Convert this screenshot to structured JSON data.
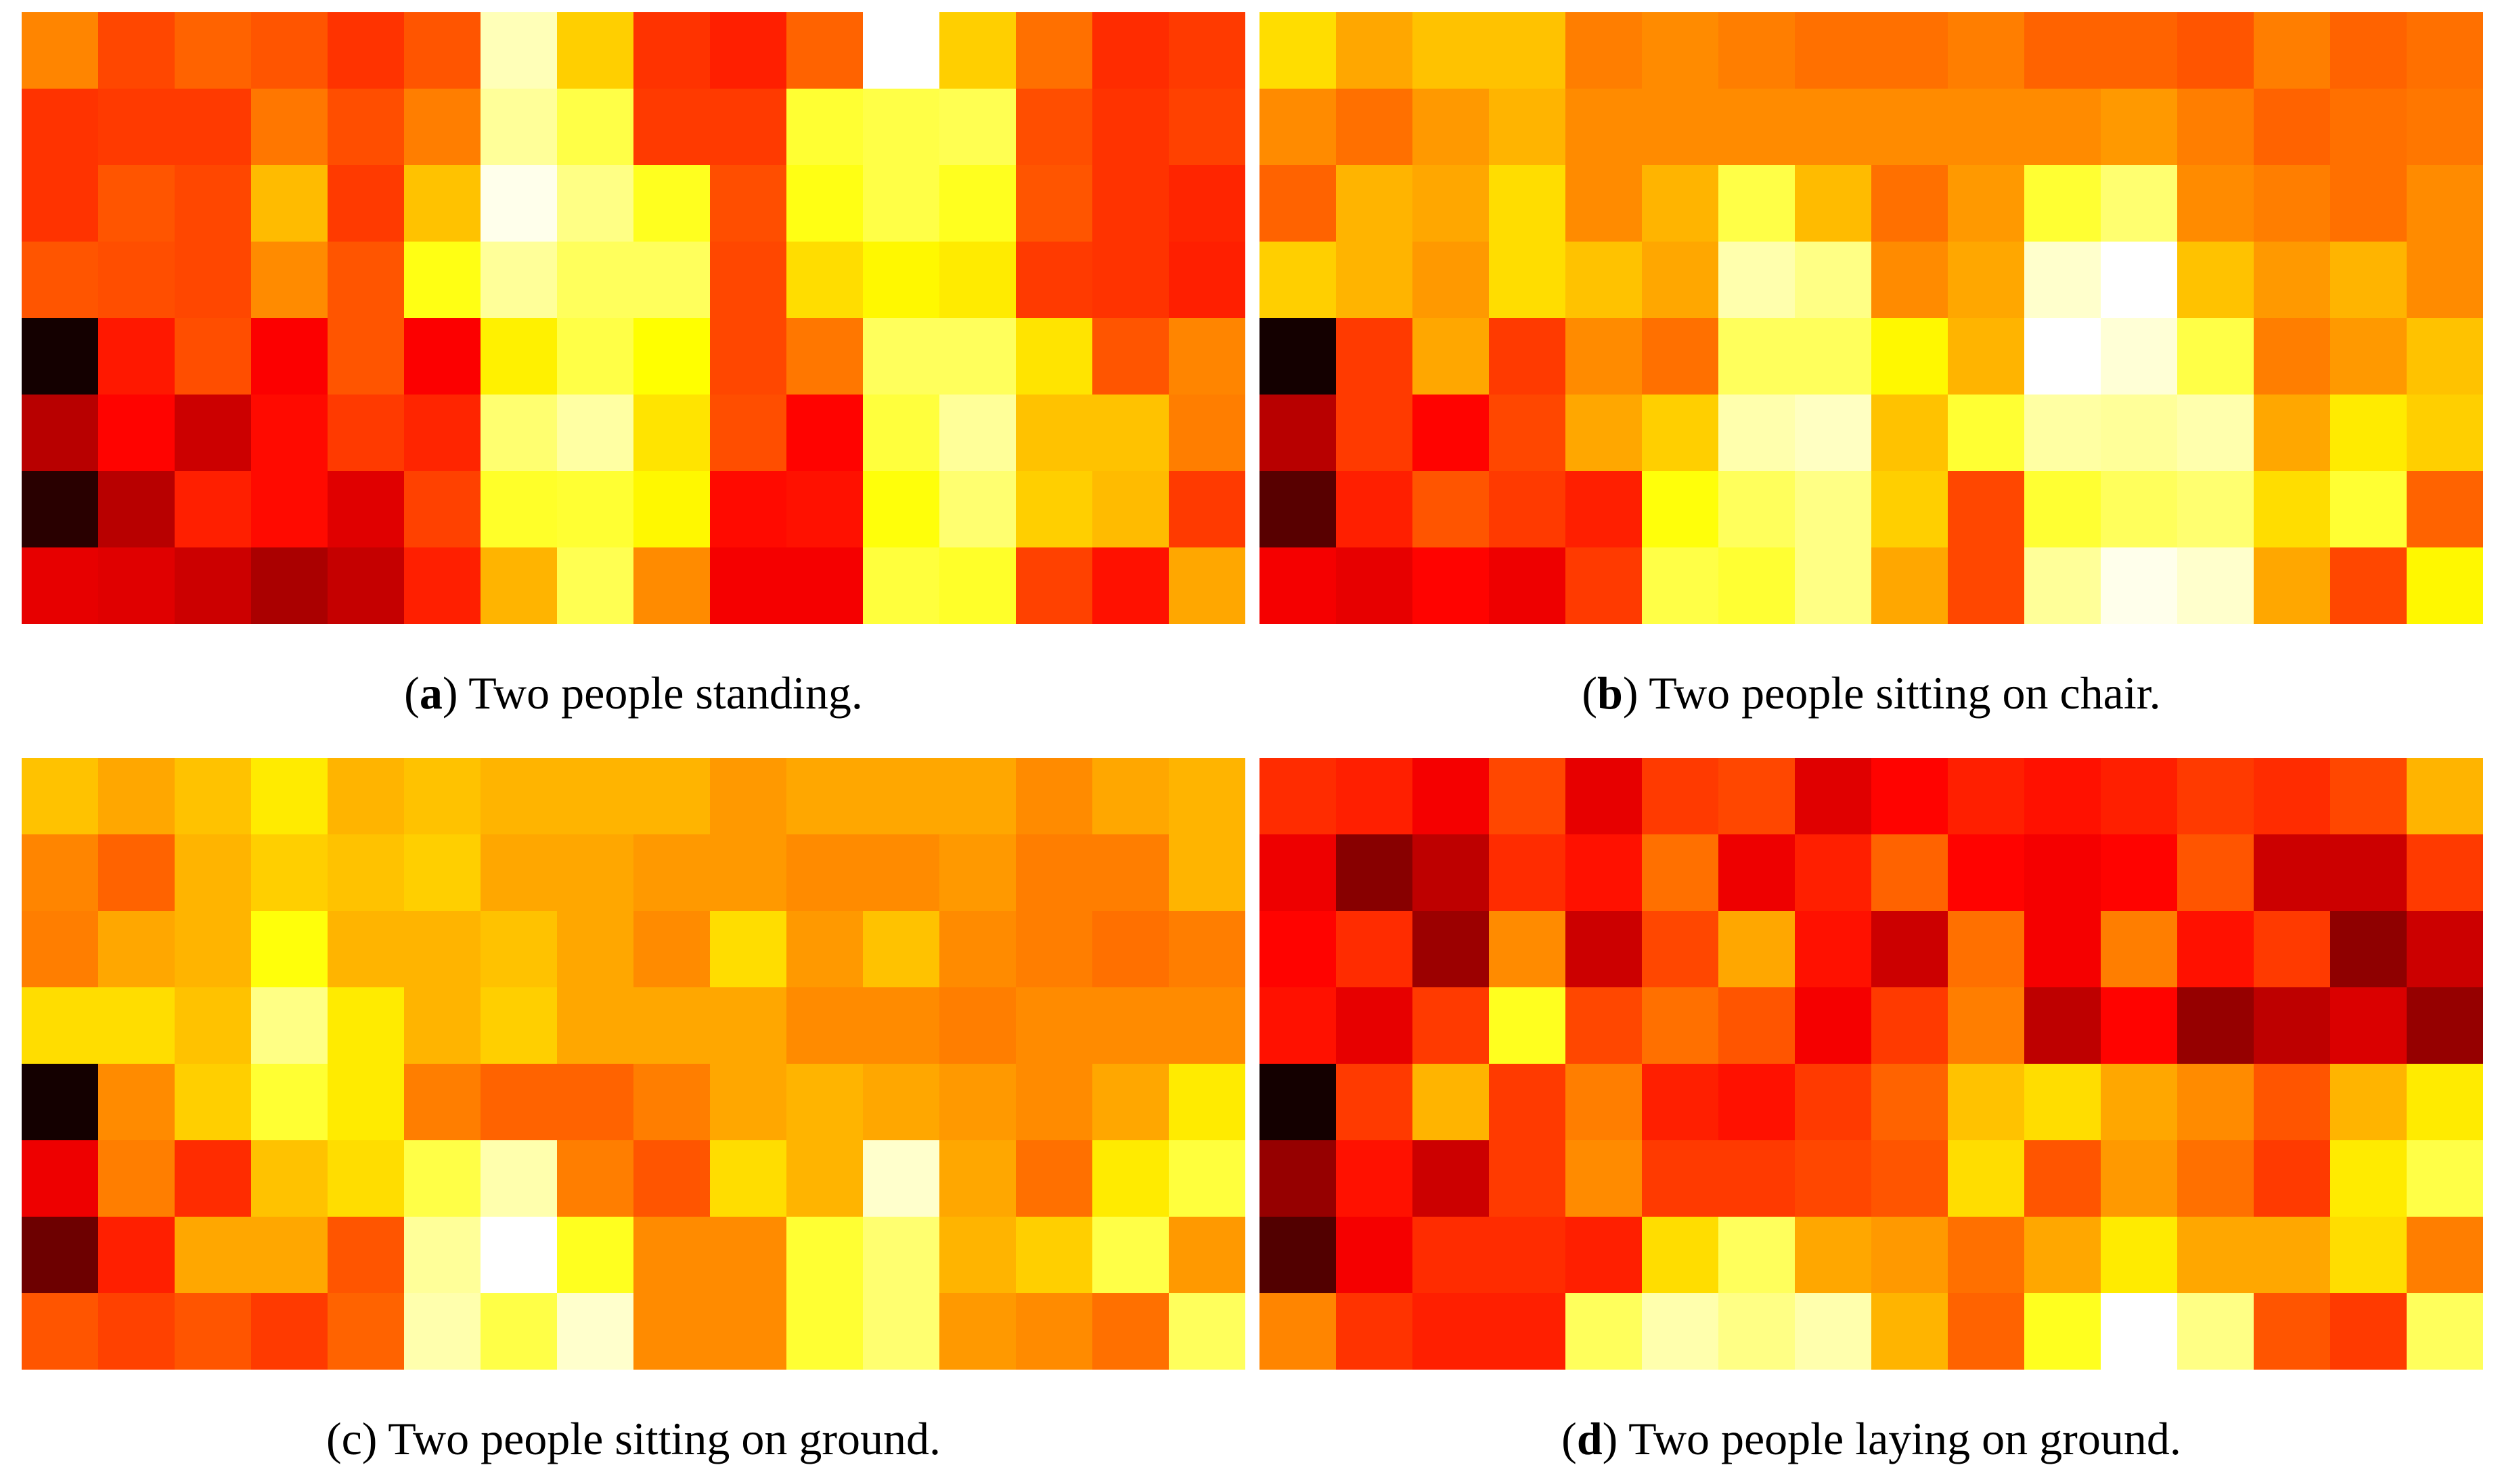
{
  "figure": {
    "panels": [
      {
        "letter": "a",
        "label": "Two people standing.",
        "letter_bold": true
      },
      {
        "letter": "b",
        "label": "Two people sitting on chair.",
        "letter_bold": true
      },
      {
        "letter": "c",
        "label": "Two people sitting on ground.",
        "letter_bold": false
      },
      {
        "letter": "d",
        "label": "Two people laying on ground.",
        "letter_bold": true
      }
    ]
  },
  "chart_data": [
    {
      "type": "heatmap",
      "title": "(a) Two people standing.",
      "colormap": "hot",
      "vmin": 0,
      "vmax": 1,
      "rows": 8,
      "cols": 16,
      "values": [
        [
          0.57,
          0.48,
          0.52,
          0.5,
          0.45,
          0.5,
          0.93,
          0.68,
          0.45,
          0.42,
          0.52,
          1.0,
          0.68,
          0.54,
          0.44,
          0.46
        ],
        [
          0.45,
          0.46,
          0.46,
          0.55,
          0.49,
          0.56,
          0.9,
          0.82,
          0.46,
          0.46,
          0.8,
          0.82,
          0.83,
          0.49,
          0.45,
          0.47
        ],
        [
          0.45,
          0.5,
          0.48,
          0.65,
          0.46,
          0.66,
          0.98,
          0.88,
          0.78,
          0.49,
          0.77,
          0.82,
          0.78,
          0.5,
          0.45,
          0.43
        ],
        [
          0.5,
          0.49,
          0.48,
          0.58,
          0.5,
          0.77,
          0.9,
          0.84,
          0.84,
          0.48,
          0.7,
          0.74,
          0.72,
          0.46,
          0.45,
          0.42
        ],
        [
          0.03,
          0.41,
          0.49,
          0.37,
          0.5,
          0.37,
          0.73,
          0.82,
          0.75,
          0.48,
          0.55,
          0.84,
          0.84,
          0.71,
          0.5,
          0.57
        ],
        [
          0.27,
          0.38,
          0.3,
          0.39,
          0.46,
          0.43,
          0.86,
          0.91,
          0.71,
          0.49,
          0.38,
          0.81,
          0.9,
          0.66,
          0.66,
          0.56
        ],
        [
          0.06,
          0.27,
          0.42,
          0.39,
          0.33,
          0.47,
          0.79,
          0.8,
          0.74,
          0.39,
          0.4,
          0.76,
          0.86,
          0.68,
          0.65,
          0.46
        ],
        [
          0.34,
          0.33,
          0.3,
          0.25,
          0.29,
          0.42,
          0.64,
          0.83,
          0.58,
          0.36,
          0.36,
          0.81,
          0.79,
          0.47,
          0.4,
          0.62
        ]
      ]
    },
    {
      "type": "heatmap",
      "title": "(b) Two people sitting on chair.",
      "colormap": "hot",
      "vmin": 0,
      "vmax": 1,
      "rows": 8,
      "cols": 16,
      "values": [
        [
          0.7,
          0.62,
          0.66,
          0.66,
          0.56,
          0.58,
          0.56,
          0.54,
          0.54,
          0.56,
          0.52,
          0.52,
          0.5,
          0.56,
          0.52,
          0.54
        ],
        [
          0.58,
          0.54,
          0.6,
          0.64,
          0.58,
          0.58,
          0.58,
          0.58,
          0.58,
          0.58,
          0.58,
          0.6,
          0.56,
          0.52,
          0.54,
          0.55
        ],
        [
          0.52,
          0.64,
          0.62,
          0.7,
          0.58,
          0.64,
          0.82,
          0.65,
          0.54,
          0.6,
          0.8,
          0.86,
          0.58,
          0.56,
          0.54,
          0.58
        ],
        [
          0.68,
          0.64,
          0.6,
          0.7,
          0.66,
          0.62,
          0.92,
          0.88,
          0.58,
          0.62,
          0.95,
          1.0,
          0.66,
          0.6,
          0.64,
          0.58
        ],
        [
          0.03,
          0.46,
          0.62,
          0.46,
          0.58,
          0.54,
          0.84,
          0.84,
          0.74,
          0.64,
          1.0,
          0.96,
          0.82,
          0.56,
          0.6,
          0.66
        ],
        [
          0.27,
          0.46,
          0.38,
          0.48,
          0.62,
          0.68,
          0.92,
          0.94,
          0.66,
          0.8,
          0.91,
          0.9,
          0.92,
          0.62,
          0.72,
          0.68
        ],
        [
          0.13,
          0.42,
          0.5,
          0.46,
          0.42,
          0.76,
          0.84,
          0.88,
          0.68,
          0.48,
          0.8,
          0.84,
          0.86,
          0.7,
          0.8,
          0.52
        ],
        [
          0.36,
          0.34,
          0.38,
          0.35,
          0.46,
          0.82,
          0.8,
          0.88,
          0.62,
          0.48,
          0.9,
          0.98,
          0.95,
          0.62,
          0.48,
          0.74
        ]
      ]
    },
    {
      "type": "heatmap",
      "title": "(c) Two people sitting on ground.",
      "colormap": "hot",
      "vmin": 0,
      "vmax": 1,
      "rows": 8,
      "cols": 16,
      "values": [
        [
          0.66,
          0.62,
          0.66,
          0.72,
          0.64,
          0.66,
          0.64,
          0.64,
          0.64,
          0.6,
          0.62,
          0.62,
          0.62,
          0.58,
          0.62,
          0.64
        ],
        [
          0.57,
          0.52,
          0.64,
          0.68,
          0.66,
          0.68,
          0.62,
          0.62,
          0.6,
          0.6,
          0.58,
          0.58,
          0.6,
          0.56,
          0.56,
          0.64
        ],
        [
          0.56,
          0.62,
          0.64,
          0.76,
          0.64,
          0.64,
          0.66,
          0.62,
          0.58,
          0.7,
          0.6,
          0.66,
          0.58,
          0.56,
          0.54,
          0.56
        ],
        [
          0.7,
          0.7,
          0.66,
          0.88,
          0.72,
          0.64,
          0.68,
          0.62,
          0.62,
          0.62,
          0.58,
          0.58,
          0.56,
          0.58,
          0.58,
          0.58
        ],
        [
          0.03,
          0.58,
          0.68,
          0.8,
          0.72,
          0.56,
          0.52,
          0.52,
          0.56,
          0.62,
          0.64,
          0.62,
          0.6,
          0.58,
          0.62,
          0.72
        ],
        [
          0.35,
          0.56,
          0.44,
          0.66,
          0.7,
          0.82,
          0.92,
          0.56,
          0.5,
          0.7,
          0.64,
          0.95,
          0.62,
          0.54,
          0.72,
          0.81
        ],
        [
          0.16,
          0.42,
          0.62,
          0.62,
          0.5,
          0.9,
          1.0,
          0.78,
          0.58,
          0.58,
          0.8,
          0.86,
          0.64,
          0.68,
          0.82,
          0.6
        ],
        [
          0.5,
          0.47,
          0.5,
          0.46,
          0.52,
          0.92,
          0.82,
          0.95,
          0.58,
          0.58,
          0.8,
          0.86,
          0.6,
          0.58,
          0.54,
          0.84
        ]
      ]
    },
    {
      "type": "heatmap",
      "title": "(d) Two people laying on ground.",
      "colormap": "hot",
      "vmin": 0,
      "vmax": 1,
      "rows": 8,
      "cols": 16,
      "values": [
        [
          0.44,
          0.42,
          0.36,
          0.48,
          0.34,
          0.46,
          0.48,
          0.33,
          0.38,
          0.42,
          0.4,
          0.42,
          0.46,
          0.44,
          0.48,
          0.64
        ],
        [
          0.35,
          0.2,
          0.28,
          0.44,
          0.4,
          0.54,
          0.35,
          0.42,
          0.52,
          0.38,
          0.36,
          0.38,
          0.5,
          0.3,
          0.3,
          0.46
        ],
        [
          0.38,
          0.44,
          0.23,
          0.58,
          0.3,
          0.48,
          0.62,
          0.4,
          0.3,
          0.54,
          0.36,
          0.56,
          0.4,
          0.46,
          0.21,
          0.3
        ],
        [
          0.4,
          0.34,
          0.46,
          0.78,
          0.48,
          0.54,
          0.5,
          0.36,
          0.46,
          0.56,
          0.28,
          0.38,
          0.22,
          0.28,
          0.32,
          0.22
        ],
        [
          0.03,
          0.46,
          0.64,
          0.46,
          0.56,
          0.42,
          0.4,
          0.46,
          0.52,
          0.66,
          0.7,
          0.62,
          0.58,
          0.5,
          0.64,
          0.72
        ],
        [
          0.22,
          0.4,
          0.3,
          0.46,
          0.58,
          0.46,
          0.46,
          0.48,
          0.5,
          0.7,
          0.5,
          0.6,
          0.54,
          0.46,
          0.72,
          0.82
        ],
        [
          0.12,
          0.36,
          0.44,
          0.44,
          0.42,
          0.7,
          0.84,
          0.62,
          0.6,
          0.54,
          0.62,
          0.72,
          0.62,
          0.62,
          0.7,
          0.56
        ],
        [
          0.57,
          0.45,
          0.42,
          0.42,
          0.84,
          0.92,
          0.88,
          0.92,
          0.64,
          0.52,
          0.78,
          1.0,
          0.88,
          0.5,
          0.46,
          0.84
        ]
      ]
    }
  ]
}
